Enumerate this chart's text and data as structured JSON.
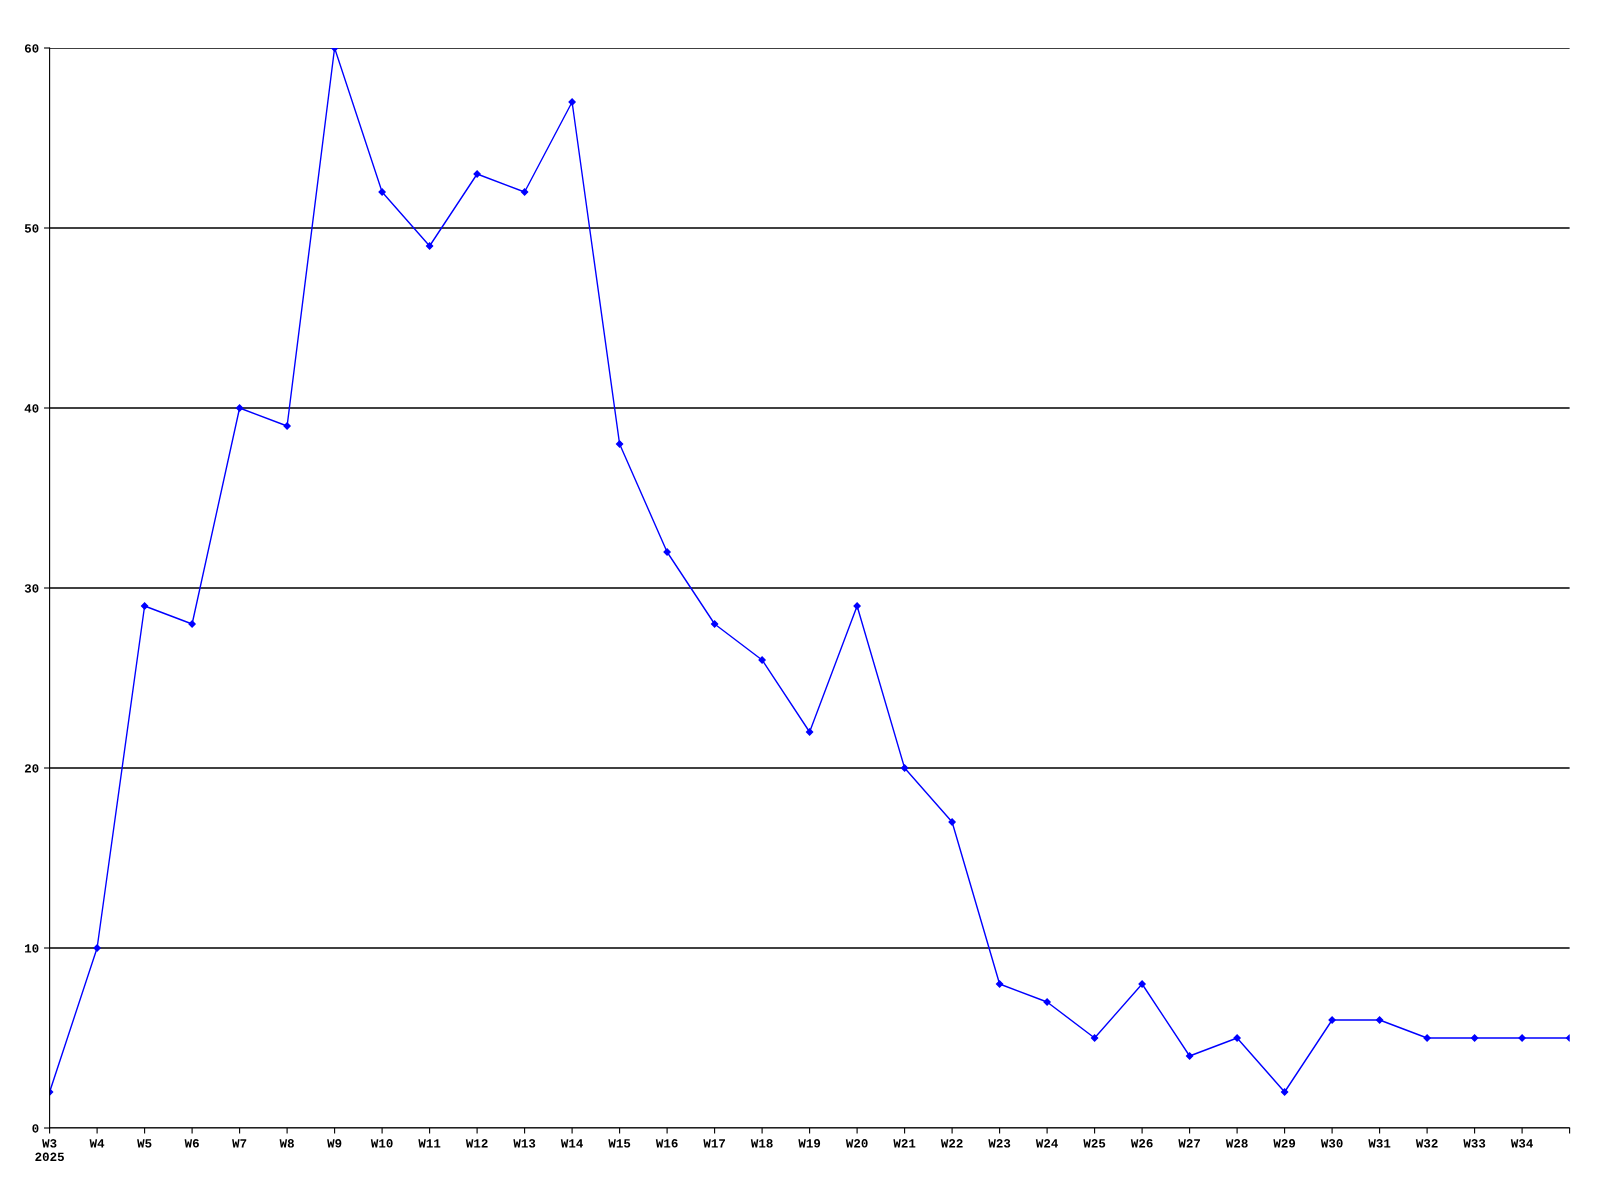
{
  "chart_data": {
    "type": "line",
    "categories": [
      "W3\n2025",
      "W4",
      "W5",
      "W6",
      "W7",
      "W8",
      "W9",
      "W10",
      "W11",
      "W12",
      "W13",
      "W14",
      "W15",
      "W16",
      "W17",
      "W18",
      "W19",
      "W20",
      "W21",
      "W22",
      "W23",
      "W24",
      "W25",
      "W26",
      "W27",
      "W28",
      "W29",
      "W30",
      "W31",
      "W32",
      "W33",
      "W34",
      null
    ],
    "series": [
      {
        "color": "#0000ff",
        "values": [
          2,
          10,
          29,
          28,
          40,
          39,
          60,
          52,
          49,
          53,
          52,
          57,
          38,
          32,
          28,
          26,
          22,
          29,
          20,
          17,
          8,
          7,
          5,
          8,
          4,
          5,
          2,
          6,
          6,
          5,
          5,
          5,
          5
        ]
      }
    ],
    "ylim": [
      0,
      60
    ],
    "yticks": [
      0,
      10,
      20,
      30,
      40,
      50,
      60
    ],
    "grid": "y",
    "marker": "diamond",
    "line_style": "solid",
    "legend": false
  }
}
